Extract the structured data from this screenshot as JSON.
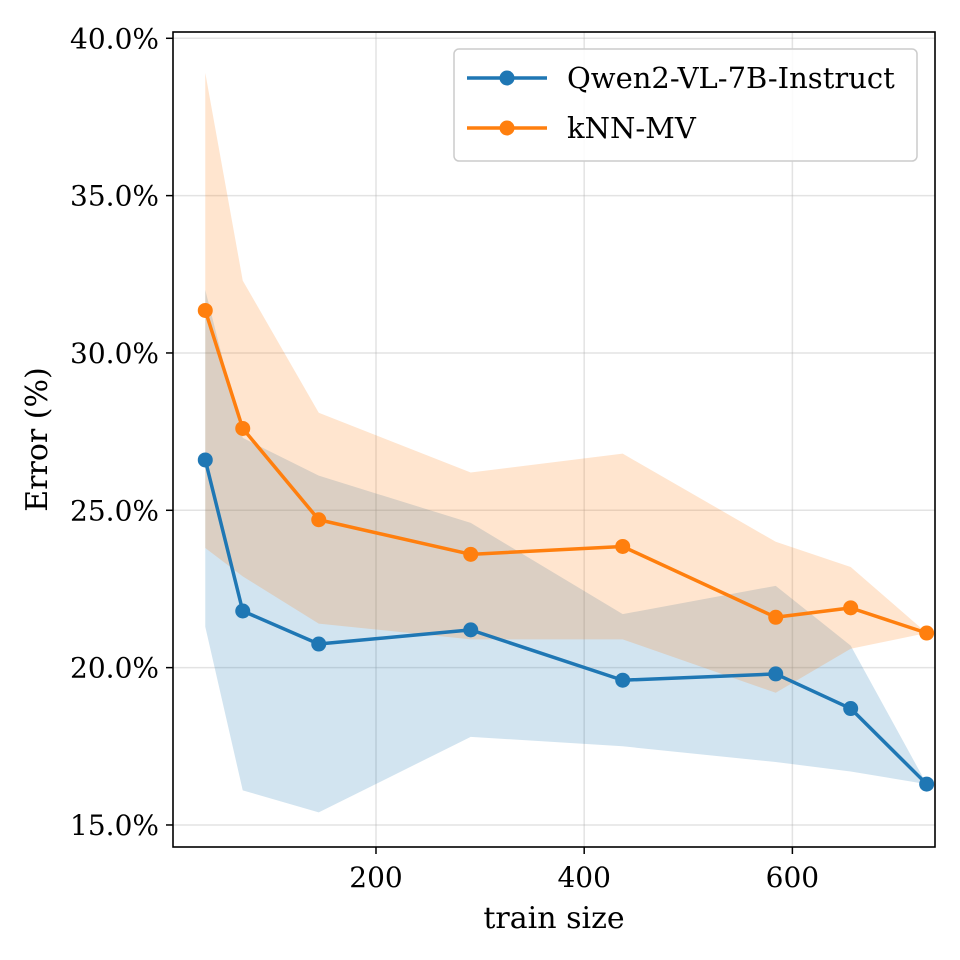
{
  "chart_data": {
    "type": "line",
    "xlabel": "train size",
    "ylabel": "Error (%)",
    "xlim": [
      5,
      737
    ],
    "ylim": [
      14.3,
      40.2
    ],
    "xticks": [
      200,
      400,
      600
    ],
    "xtick_labels": [
      "200",
      "400",
      "600"
    ],
    "yticks": [
      15,
      20,
      25,
      30,
      35,
      40
    ],
    "ytick_labels": [
      "15.0%",
      "20.0%",
      "25.0%",
      "30.0%",
      "35.0%",
      "40.0%"
    ],
    "grid": true,
    "legend_position": "top-right",
    "x": [
      36,
      72,
      145,
      291,
      437,
      584,
      656,
      729
    ],
    "series": [
      {
        "name": "Qwen2-VL-7B-Instruct",
        "color": "#1f77b4",
        "band_color": "#1f77b4",
        "values": [
          26.6,
          21.8,
          20.75,
          21.2,
          19.6,
          19.8,
          18.7,
          16.3
        ],
        "lower": [
          21.3,
          16.1,
          15.4,
          17.8,
          17.5,
          17.0,
          16.7,
          16.3
        ],
        "upper": [
          32.0,
          27.3,
          26.1,
          24.6,
          21.7,
          22.6,
          20.7,
          16.3
        ]
      },
      {
        "name": "kNN-MV",
        "color": "#ff7f0e",
        "band_color": "#ff7f0e",
        "values": [
          31.35,
          27.6,
          24.7,
          23.6,
          23.85,
          21.6,
          21.9,
          21.1
        ],
        "lower": [
          23.8,
          22.9,
          21.4,
          20.9,
          20.9,
          19.2,
          20.6,
          21.1
        ],
        "upper": [
          38.9,
          32.3,
          28.1,
          26.2,
          26.8,
          24.0,
          23.2,
          21.1
        ]
      }
    ]
  }
}
